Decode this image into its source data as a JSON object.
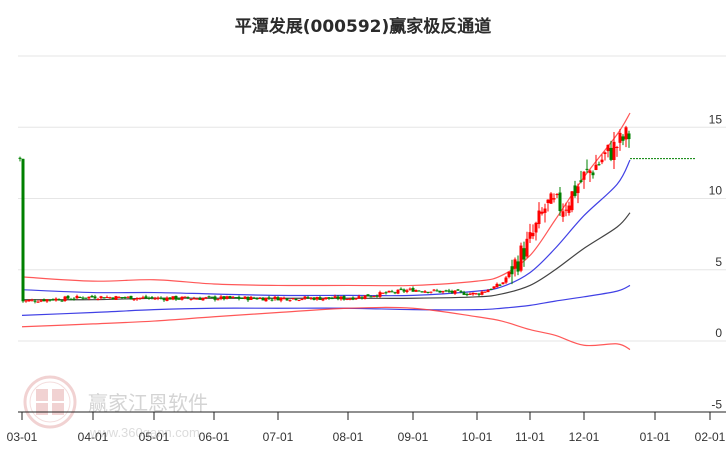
{
  "title": "平潭发展(000592)赢家极反通道",
  "watermark": {
    "name": "赢家江恩软件",
    "url": "www.360gann.com",
    "seal_chars": [
      "江",
      "赢",
      "恩",
      "家"
    ]
  },
  "colors": {
    "up": "#ff0000",
    "down": "#008000",
    "outer_band": "#ff3b3b",
    "inner_band": "#2020e0",
    "mid_line": "#222222",
    "last_price_line": "#008000",
    "grid": "#e6e6e6"
  },
  "chart_data": {
    "type": "candlestick",
    "title": "平潭发展(000592)赢家极反通道",
    "xlabel": "",
    "ylabel": "",
    "ylim": [
      -5,
      20
    ],
    "y_ticks": [
      15,
      10,
      5,
      0,
      -5
    ],
    "x_ticks": [
      "03-01",
      "04-01",
      "05-01",
      "06-01",
      "07-01",
      "08-01",
      "09-01",
      "10-01",
      "11-01",
      "12-01",
      "01-01",
      "02-01"
    ],
    "grid": "horizontal",
    "last_price": 12.8,
    "series": [
      {
        "name": "upper_outer_band",
        "color": "red",
        "x": [
          "03-01",
          "04-01",
          "05-01",
          "06-01",
          "07-01",
          "08-01",
          "09-01",
          "10-01",
          "10-15",
          "11-01",
          "11-15",
          "12-01",
          "12-15",
          "12-25"
        ],
        "values": [
          4.5,
          4.2,
          4.3,
          4.0,
          3.9,
          3.9,
          3.9,
          4.2,
          4.6,
          6.0,
          8.5,
          11.5,
          14.5,
          16.0
        ]
      },
      {
        "name": "upper_inner_band",
        "color": "blue",
        "x": [
          "03-01",
          "04-01",
          "05-01",
          "06-01",
          "07-01",
          "08-01",
          "09-01",
          "10-01",
          "10-15",
          "11-01",
          "11-15",
          "12-01",
          "12-15",
          "12-25"
        ],
        "values": [
          3.6,
          3.4,
          3.4,
          3.3,
          3.2,
          3.2,
          3.2,
          3.5,
          3.8,
          4.8,
          6.5,
          8.8,
          11.0,
          12.7
        ]
      },
      {
        "name": "mid_line",
        "color": "black",
        "x": [
          "03-01",
          "04-01",
          "05-01",
          "06-01",
          "07-01",
          "08-01",
          "09-01",
          "10-01",
          "10-15",
          "11-01",
          "11-15",
          "12-01",
          "12-15",
          "12-25"
        ],
        "values": [
          2.9,
          2.9,
          3.0,
          3.0,
          3.0,
          3.0,
          3.0,
          3.1,
          3.3,
          3.9,
          5.0,
          6.5,
          8.0,
          9.0
        ]
      },
      {
        "name": "lower_inner_band",
        "color": "blue",
        "x": [
          "03-01",
          "04-01",
          "05-01",
          "06-01",
          "07-01",
          "08-01",
          "09-01",
          "10-01",
          "10-15",
          "11-01",
          "11-15",
          "12-01",
          "12-15",
          "12-25"
        ],
        "values": [
          1.8,
          2.0,
          2.2,
          2.3,
          2.3,
          2.3,
          2.2,
          2.2,
          2.3,
          2.5,
          2.8,
          3.1,
          3.5,
          3.9
        ]
      },
      {
        "name": "lower_outer_band",
        "color": "red",
        "x": [
          "03-01",
          "04-01",
          "05-01",
          "06-01",
          "07-01",
          "08-01",
          "09-01",
          "10-01",
          "10-15",
          "11-01",
          "11-15",
          "12-01",
          "12-15",
          "12-25"
        ],
        "values": [
          1.0,
          1.2,
          1.4,
          1.7,
          2.0,
          2.3,
          2.3,
          1.7,
          1.4,
          0.8,
          0.4,
          -0.3,
          -0.2,
          -0.6
        ]
      },
      {
        "name": "price_close",
        "color": "candles",
        "x": [
          "03-01",
          "04-01",
          "05-01",
          "06-01",
          "07-01",
          "08-01",
          "09-01",
          "10-01",
          "10-15",
          "11-01",
          "11-10",
          "11-20",
          "12-01",
          "12-10",
          "12-20",
          "12-25"
        ],
        "values": [
          2.8,
          3.1,
          3.0,
          3.0,
          3.0,
          3.0,
          3.6,
          3.3,
          4.0,
          7.0,
          9.5,
          9.5,
          11.5,
          13.0,
          14.5,
          12.8
        ]
      }
    ]
  }
}
